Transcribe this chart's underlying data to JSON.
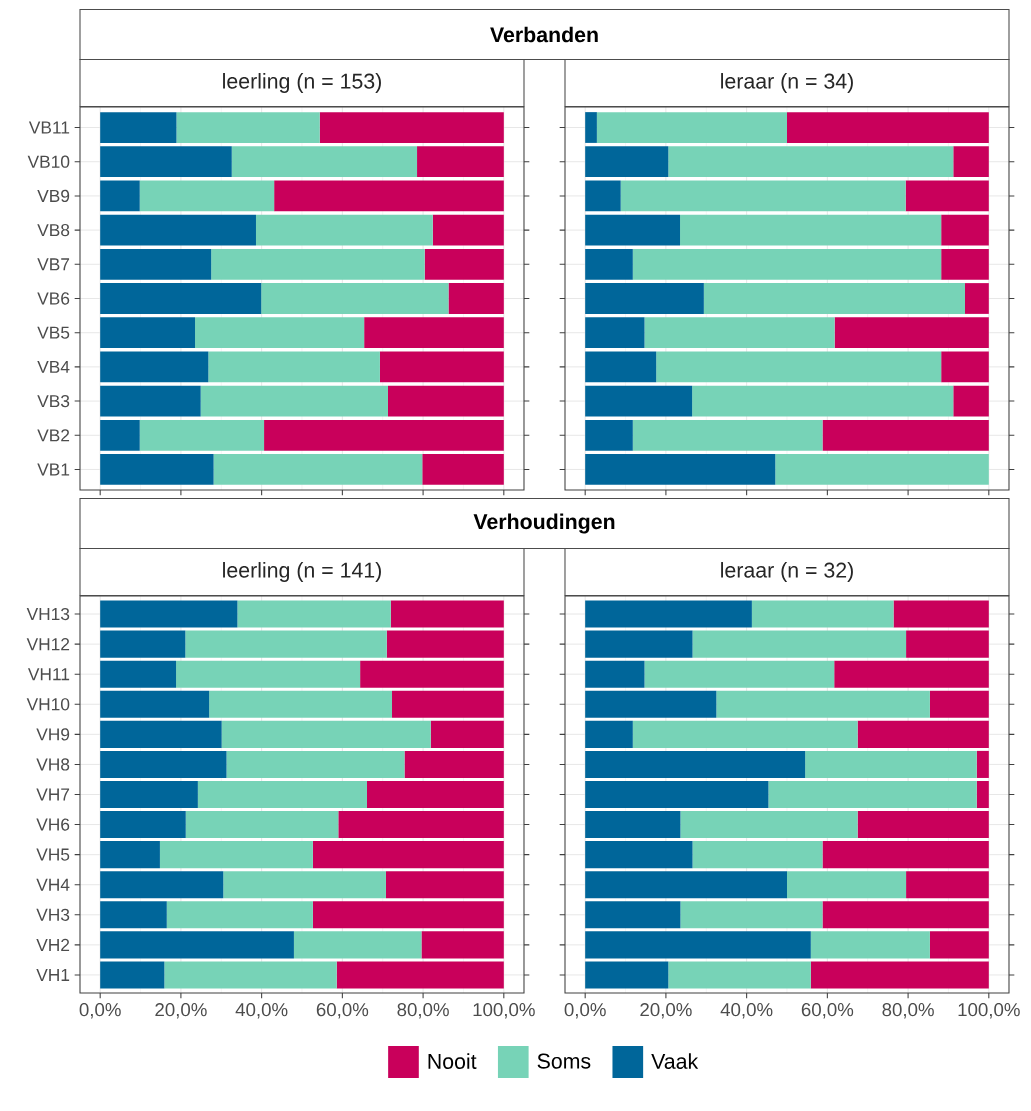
{
  "chart_data": [
    {
      "type": "bar",
      "orientation": "horizontal",
      "stacked": true,
      "title": "Verbanden",
      "subtitle": "leerling (n = 153)",
      "categories": [
        "VB11",
        "VB10",
        "VB9",
        "VB8",
        "VB7",
        "VB6",
        "VB5",
        "VB4",
        "VB3",
        "VB2",
        "VB1"
      ],
      "series": [
        {
          "color": "#00669a",
          "values": [
            18.9,
            32.6,
            9.8,
            38.6,
            27.5,
            39.9,
            23.5,
            26.8,
            24.9,
            9.8,
            28.1
          ]
        },
        {
          "color": "#77d3b7",
          "values": [
            35.5,
            45.9,
            33.3,
            43.8,
            52.9,
            46.4,
            41.9,
            42.5,
            46.4,
            30.8,
            51.7
          ]
        },
        {
          "color": "#c9005b",
          "values": [
            45.6,
            21.5,
            56.9,
            17.6,
            19.6,
            13.7,
            34.6,
            30.7,
            28.7,
            59.4,
            20.2
          ]
        }
      ],
      "xlim": [
        -5,
        105
      ],
      "xticks": [
        {
          "value": 0,
          "label": null
        },
        {
          "value": 20,
          "label": null
        },
        {
          "value": 40,
          "label": null
        },
        {
          "value": 60,
          "label": null
        },
        {
          "value": 80,
          "label": null
        },
        {
          "value": 100,
          "label": null
        }
      ],
      "grid": true,
      "tick_labels": "y"
    },
    {
      "type": "bar",
      "orientation": "horizontal",
      "stacked": true,
      "subtitle": "leraar (n = 34)",
      "categories": [
        null,
        null,
        null,
        null,
        null,
        null,
        null,
        null,
        null,
        null,
        null
      ],
      "series": [
        {
          "color": "#00669a",
          "values": [
            2.9,
            20.6,
            8.8,
            23.5,
            11.8,
            29.4,
            14.7,
            17.6,
            26.5,
            11.8,
            47.1
          ]
        },
        {
          "color": "#77d3b7",
          "values": [
            47.1,
            70.6,
            70.6,
            64.7,
            76.4,
            64.7,
            47.1,
            70.6,
            64.7,
            47.0,
            52.9
          ]
        },
        {
          "color": "#c9005b",
          "values": [
            50.0,
            8.8,
            20.6,
            11.8,
            11.8,
            5.9,
            38.2,
            11.8,
            8.8,
            41.2,
            0
          ]
        }
      ],
      "xlim": [
        -5,
        105
      ],
      "xticks": [
        {
          "value": 0,
          "label": null
        },
        {
          "value": 20,
          "label": null
        },
        {
          "value": 40,
          "label": null
        },
        {
          "value": 60,
          "label": null
        },
        {
          "value": 80,
          "label": null
        },
        {
          "value": 100,
          "label": null
        }
      ],
      "grid": true,
      "tick_labels": false
    },
    {
      "type": "bar",
      "orientation": "horizontal",
      "stacked": true,
      "title": "Verhoudingen",
      "subtitle": "leerling (n = 141)",
      "categories": [
        "VH13",
        "VH12",
        "VH11",
        "VH10",
        "VH9",
        "VH8",
        "VH7",
        "VH6",
        "VH5",
        "VH4",
        "VH3",
        "VH2",
        "VH1"
      ],
      "series": [
        {
          "color": "#00669a",
          "values": [
            34.0,
            21.1,
            18.8,
            27.0,
            30.1,
            31.3,
            24.2,
            21.2,
            14.8,
            30.5,
            16.5,
            48.0,
            15.9
          ]
        },
        {
          "color": "#77d3b7",
          "values": [
            38.0,
            49.9,
            45.6,
            45.3,
            51.8,
            44.1,
            41.9,
            37.8,
            37.9,
            40.3,
            36.2,
            31.6,
            42.7
          ]
        },
        {
          "color": "#c9005b",
          "values": [
            28.0,
            29.0,
            35.6,
            27.7,
            18.1,
            24.6,
            33.9,
            41.0,
            47.3,
            29.2,
            47.3,
            20.4,
            41.4
          ]
        }
      ],
      "xlim": [
        -5,
        105
      ],
      "xticks": [
        {
          "value": 0,
          "label": "0,0%"
        },
        {
          "value": 20,
          "label": "20,0%"
        },
        {
          "value": 40,
          "label": "40,0%"
        },
        {
          "value": 60,
          "label": "60,0%"
        },
        {
          "value": 80,
          "label": "80,0%"
        },
        {
          "value": 100,
          "label": "100,0%"
        }
      ],
      "grid": true
    },
    {
      "type": "bar",
      "orientation": "horizontal",
      "stacked": true,
      "subtitle": "leraar (n = 32)",
      "categories": [
        null,
        null,
        null,
        null,
        null,
        null,
        null,
        null,
        null,
        null,
        null,
        null,
        null
      ],
      "series": [
        {
          "name": "Vaak",
          "color": "#00669a",
          "values": [
            41.3,
            26.6,
            14.7,
            32.5,
            11.8,
            54.5,
            45.4,
            23.6,
            26.6,
            50.0,
            23.6,
            55.9,
            20.6
          ]
        },
        {
          "name": "Soms",
          "color": "#77d3b7",
          "values": [
            35.1,
            52.9,
            47.0,
            52.9,
            55.7,
            42.5,
            51.6,
            43.9,
            32.2,
            29.5,
            35.2,
            29.5,
            35.3
          ]
        },
        {
          "name": "Nooit",
          "color": "#c9005b",
          "values": [
            23.6,
            20.5,
            38.3,
            14.6,
            32.5,
            3.0,
            3.0,
            32.5,
            41.2,
            20.5,
            41.2,
            14.6,
            44.1
          ]
        }
      ],
      "xlim": [
        -5,
        105
      ],
      "xticks": [
        {
          "value": 0,
          "label": "0,0%"
        },
        {
          "value": 20,
          "label": "20,0%"
        },
        {
          "value": 40,
          "label": "40,0%"
        },
        {
          "value": 60,
          "label": "60,0%"
        },
        {
          "value": 80,
          "label": "80,0%"
        },
        {
          "value": 100,
          "label": "100,0%"
        }
      ],
      "grid": true,
      "tick_labels": "x",
      "legend": "bottom"
    }
  ]
}
